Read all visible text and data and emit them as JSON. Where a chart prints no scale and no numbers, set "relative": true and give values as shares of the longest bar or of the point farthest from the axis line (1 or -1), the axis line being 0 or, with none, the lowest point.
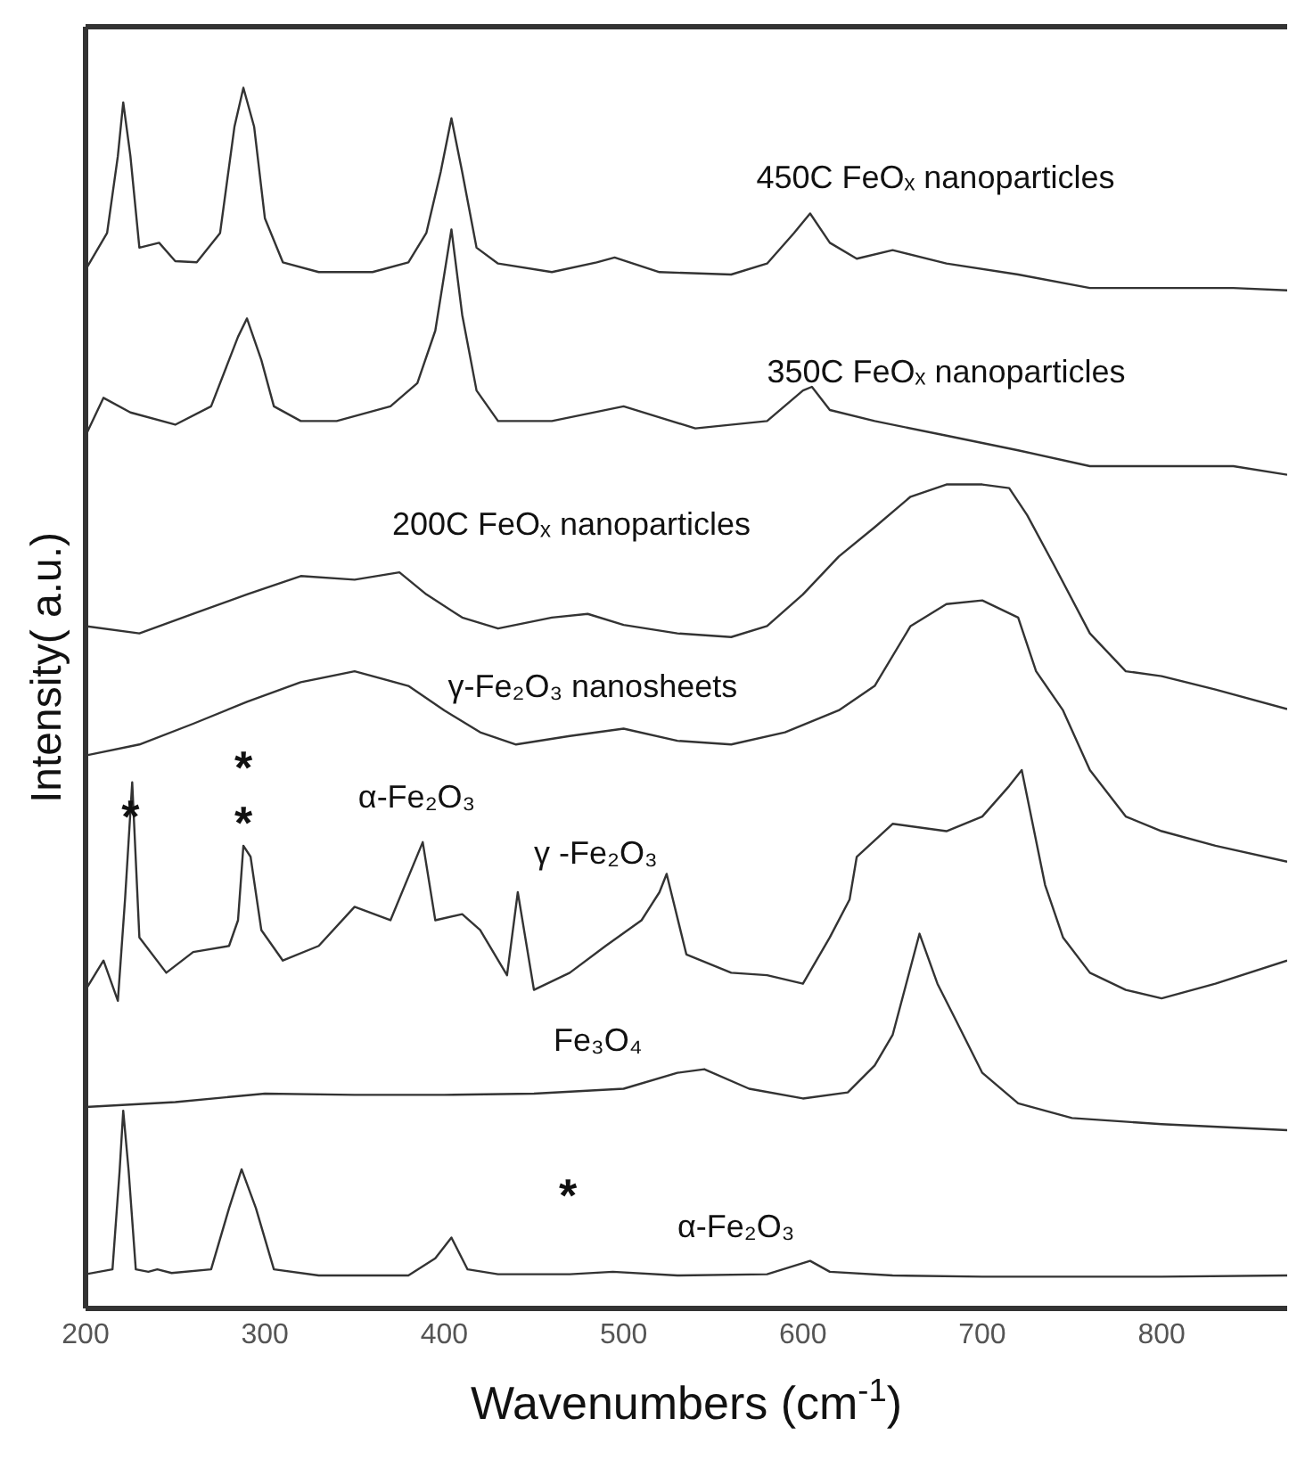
{
  "chart_data": {
    "type": "line",
    "relative": true,
    "xlabel": "Wavenumbers (cm$^{-1}$)",
    "ylabel": "Intensity( a.u.)",
    "xlim": [
      200,
      870
    ],
    "xticks": [
      200,
      300,
      400,
      500,
      600,
      700,
      800
    ],
    "marker": "none",
    "line_style": "solid",
    "series": [
      {
        "name": "450C FeOₓ nanoparticles",
        "color": "#333333",
        "x": [
          200,
          212,
          218,
          221,
          225,
          230,
          241,
          250,
          262,
          275,
          283,
          288,
          294,
          300,
          310,
          330,
          360,
          380,
          390,
          398,
          404,
          410,
          418,
          430,
          460,
          485,
          495,
          520,
          560,
          580,
          595,
          604,
          615,
          630,
          650,
          680,
          720,
          760,
          800,
          840,
          870
        ],
        "values": [
          0.851,
          0.881,
          0.944,
          0.988,
          0.944,
          0.869,
          0.873,
          0.858,
          0.857,
          0.881,
          0.968,
          1.0,
          0.968,
          0.893,
          0.857,
          0.849,
          0.849,
          0.857,
          0.881,
          0.931,
          0.975,
          0.931,
          0.869,
          0.856,
          0.849,
          0.857,
          0.861,
          0.849,
          0.847,
          0.856,
          0.881,
          0.897,
          0.873,
          0.86,
          0.867,
          0.856,
          0.847,
          0.836,
          0.836,
          0.836,
          0.834
        ]
      },
      {
        "name": "350C FeOₓ nanoparticles",
        "color": "#333333",
        "x": [
          200,
          210,
          225,
          250,
          270,
          285,
          290,
          298,
          305,
          320,
          340,
          370,
          385,
          395,
          404,
          410,
          418,
          430,
          460,
          500,
          540,
          580,
          600,
          605,
          615,
          640,
          680,
          720,
          760,
          800,
          840,
          870
        ],
        "values": [
          0.715,
          0.746,
          0.734,
          0.724,
          0.739,
          0.796,
          0.811,
          0.777,
          0.739,
          0.727,
          0.727,
          0.739,
          0.758,
          0.801,
          0.884,
          0.814,
          0.752,
          0.727,
          0.727,
          0.739,
          0.721,
          0.727,
          0.752,
          0.755,
          0.736,
          0.727,
          0.715,
          0.703,
          0.69,
          0.69,
          0.69,
          0.683
        ]
      },
      {
        "name": "200C FeOₓ nanoparticles",
        "color": "#333333",
        "x": [
          200,
          230,
          260,
          290,
          320,
          350,
          375,
          390,
          410,
          430,
          460,
          480,
          500,
          530,
          560,
          580,
          600,
          620,
          640,
          660,
          680,
          700,
          715,
          725,
          740,
          760,
          780,
          800,
          830,
          870
        ],
        "values": [
          0.559,
          0.553,
          0.569,
          0.585,
          0.6,
          0.597,
          0.603,
          0.585,
          0.566,
          0.557,
          0.566,
          0.569,
          0.56,
          0.553,
          0.55,
          0.559,
          0.585,
          0.616,
          0.64,
          0.665,
          0.675,
          0.675,
          0.672,
          0.65,
          0.609,
          0.553,
          0.522,
          0.518,
          0.507,
          0.491
        ]
      },
      {
        "name": "γ-Fe₂O₃ nanosheets",
        "color": "#333333",
        "x": [
          200,
          230,
          260,
          290,
          320,
          350,
          380,
          400,
          420,
          440,
          470,
          500,
          530,
          560,
          590,
          620,
          640,
          660,
          680,
          700,
          720,
          730,
          745,
          760,
          780,
          800,
          830,
          870
        ],
        "values": [
          0.453,
          0.462,
          0.479,
          0.497,
          0.513,
          0.522,
          0.51,
          0.49,
          0.472,
          0.462,
          0.469,
          0.475,
          0.465,
          0.462,
          0.472,
          0.49,
          0.51,
          0.559,
          0.577,
          0.58,
          0.566,
          0.522,
          0.49,
          0.441,
          0.403,
          0.391,
          0.379,
          0.366
        ]
      },
      {
        "name": "γ -Fe₂O₃",
        "color": "#333333",
        "x": [
          200,
          210,
          218,
          222,
          226,
          230,
          245,
          260,
          280,
          285,
          288,
          292,
          298,
          310,
          330,
          350,
          370,
          388,
          395,
          410,
          420,
          435,
          441,
          450,
          470,
          490,
          510,
          520,
          524,
          535,
          560,
          580,
          600,
          615,
          626,
          630,
          650,
          680,
          700,
          715,
          722,
          735,
          745,
          760,
          780,
          800,
          830,
          870
        ],
        "values": [
          0.261,
          0.285,
          0.252,
          0.335,
          0.431,
          0.304,
          0.275,
          0.292,
          0.297,
          0.318,
          0.379,
          0.37,
          0.31,
          0.285,
          0.297,
          0.329,
          0.318,
          0.382,
          0.318,
          0.323,
          0.31,
          0.273,
          0.341,
          0.261,
          0.275,
          0.297,
          0.318,
          0.341,
          0.356,
          0.29,
          0.275,
          0.273,
          0.266,
          0.304,
          0.335,
          0.37,
          0.397,
          0.391,
          0.403,
          0.428,
          0.441,
          0.347,
          0.304,
          0.275,
          0.261,
          0.254,
          0.266,
          0.285
        ]
      },
      {
        "name": "Fe₃O₄",
        "color": "#333333",
        "x": [
          200,
          250,
          300,
          350,
          400,
          450,
          500,
          530,
          545,
          570,
          600,
          625,
          640,
          650,
          665,
          675,
          685,
          700,
          720,
          750,
          800,
          870
        ],
        "values": [
          0.165,
          0.169,
          0.176,
          0.175,
          0.175,
          0.176,
          0.18,
          0.193,
          0.196,
          0.18,
          0.172,
          0.177,
          0.199,
          0.224,
          0.307,
          0.266,
          0.237,
          0.193,
          0.168,
          0.156,
          0.151,
          0.146
        ]
      },
      {
        "name": "α-Fe₂O₃",
        "color": "#333333",
        "x": [
          200,
          215,
          219,
          221,
          224,
          228,
          235,
          240,
          248,
          270,
          280,
          287,
          295,
          305,
          330,
          380,
          395,
          404,
          413,
          430,
          470,
          494,
          530,
          580,
          604,
          615,
          650,
          700,
          800,
          870
        ],
        "values": [
          0.028,
          0.032,
          0.113,
          0.162,
          0.113,
          0.032,
          0.03,
          0.032,
          0.029,
          0.032,
          0.082,
          0.114,
          0.082,
          0.032,
          0.027,
          0.027,
          0.041,
          0.058,
          0.032,
          0.028,
          0.028,
          0.03,
          0.027,
          0.028,
          0.039,
          0.03,
          0.027,
          0.026,
          0.026,
          0.027
        ]
      }
    ],
    "annotations": [
      "*",
      "*",
      "*",
      "α-Fe₂O₃",
      "*"
    ]
  }
}
